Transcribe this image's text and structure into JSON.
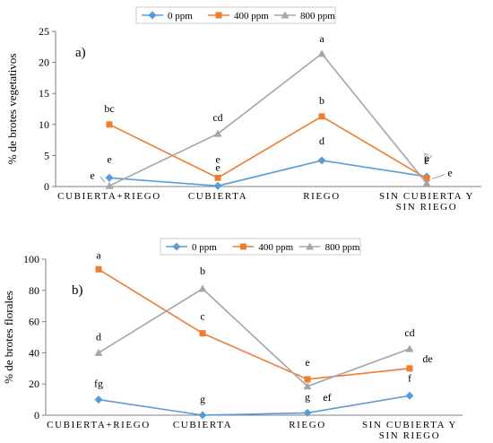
{
  "chart_data": [
    {
      "type": "line",
      "panel_label": "a)",
      "ylabel": "% de brotes vegetativos",
      "ylim": [
        0,
        25
      ],
      "yticks": [
        0,
        5,
        10,
        15,
        20,
        25
      ],
      "categories": [
        [
          "CUBIERTA+RIEGO"
        ],
        [
          "CUBIERTA"
        ],
        [
          "RIEGO"
        ],
        [
          "SIN CUBIERTA Y",
          "SIN RIEGO"
        ]
      ],
      "legend": [
        "0 ppm",
        "400 ppm",
        "800 ppm"
      ],
      "legend_position": "top-center",
      "grid": false,
      "series": [
        {
          "name": "0 ppm",
          "color": "#5b9bd5",
          "marker": "diamond",
          "values": [
            1.4,
            0.1,
            4.2,
            1.6
          ],
          "labels": [
            "e",
            "e",
            "d",
            "e"
          ]
        },
        {
          "name": "400 ppm",
          "color": "#ed7d31",
          "marker": "square",
          "values": [
            10,
            1.4,
            11.3,
            1.3
          ],
          "labels": [
            "bc",
            "e",
            "b",
            "e"
          ]
        },
        {
          "name": "800 ppm",
          "color": "#a5a5a5",
          "marker": "triangle",
          "values": [
            0.1,
            8.5,
            21.4,
            0.5
          ],
          "labels": [
            "e",
            "cd",
            "a",
            "e"
          ]
        }
      ]
    },
    {
      "type": "line",
      "panel_label": "b)",
      "ylabel": "% de brotes florales",
      "ylim": [
        0,
        100
      ],
      "yticks": [
        0,
        20,
        40,
        60,
        80,
        100
      ],
      "categories": [
        [
          "CUBIERTA+RIEGO"
        ],
        [
          "CUBIERTA"
        ],
        [
          "RIEGO"
        ],
        [
          "SIN CUBIERTA Y",
          "SIN RIEGO"
        ]
      ],
      "legend": [
        "0 ppm",
        "400 ppm",
        "800 ppm"
      ],
      "legend_position": "top-center",
      "grid": false,
      "series": [
        {
          "name": "0 ppm",
          "color": "#5b9bd5",
          "marker": "diamond",
          "values": [
            10,
            0,
            1.5,
            12.5
          ],
          "labels": [
            "fg",
            "g",
            "g",
            "f"
          ]
        },
        {
          "name": "400 ppm",
          "color": "#ed7d31",
          "marker": "square",
          "values": [
            93.5,
            52.5,
            23,
            30
          ],
          "labels": [
            "a",
            "c",
            "e",
            "de"
          ]
        },
        {
          "name": "800 ppm",
          "color": "#a5a5a5",
          "marker": "triangle",
          "values": [
            40,
            81,
            18.5,
            42.5
          ],
          "labels": [
            "d",
            "b",
            "ef",
            "cd"
          ]
        }
      ]
    }
  ]
}
